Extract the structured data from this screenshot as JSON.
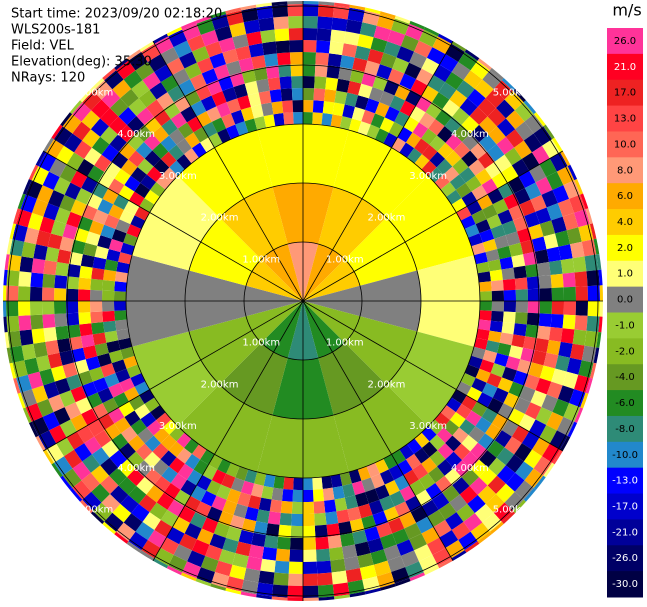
{
  "chart_data": {
    "type": "ppi",
    "header": [
      "Start time: 2023/09/20 02:18:20",
      "WLS200s-181",
      "Field: VEL",
      "Elevation(deg): 35.30",
      "NRays: 120"
    ],
    "colorbar_title": "m/s",
    "colorbar": [
      {
        "value": 26,
        "label": "26.0",
        "color": "#ff3399"
      },
      {
        "value": 21,
        "label": "21.0",
        "color": "#ff0022"
      },
      {
        "value": 17,
        "label": "17.0",
        "color": "#ee2222"
      },
      {
        "value": 13,
        "label": "13.0",
        "color": "#ff4444"
      },
      {
        "value": 10,
        "label": "10.0",
        "color": "#ff6655"
      },
      {
        "value": 8,
        "label": "8.0",
        "color": "#ff9977"
      },
      {
        "value": 6,
        "label": "6.0",
        "color": "#ffaa00"
      },
      {
        "value": 4,
        "label": "4.0",
        "color": "#ffcc00"
      },
      {
        "value": 2,
        "label": "2.0",
        "color": "#ffff00"
      },
      {
        "value": 1,
        "label": "1.0",
        "color": "#ffff77"
      },
      {
        "value": 0,
        "label": "0.0",
        "color": "#808080"
      },
      {
        "value": -1,
        "label": "-1.0",
        "color": "#99cc33"
      },
      {
        "value": -2,
        "label": "-2.0",
        "color": "#88bb22"
      },
      {
        "value": -4,
        "label": "-4.0",
        "color": "#669922"
      },
      {
        "value": -6,
        "label": "-6.0",
        "color": "#228b22"
      },
      {
        "value": -8,
        "label": "-8.0",
        "color": "#2e8b77"
      },
      {
        "value": -10,
        "label": "-10.0",
        "color": "#2288cc"
      },
      {
        "value": -13,
        "label": "-13.0",
        "color": "#0000ff"
      },
      {
        "value": -17,
        "label": "-17.0",
        "color": "#0000cc"
      },
      {
        "value": -21,
        "label": "-21.0",
        "color": "#000099"
      },
      {
        "value": -26,
        "label": "-26.0",
        "color": "#000066"
      },
      {
        "value": -30,
        "label": "-30.0",
        "color": "#000044"
      }
    ],
    "range_rings": [
      {
        "value": 1,
        "label": "1.00km"
      },
      {
        "value": 2,
        "label": "2.00km"
      },
      {
        "value": 3,
        "label": "3.00km"
      },
      {
        "value": 4,
        "label": "4.00km"
      },
      {
        "value": 5,
        "label": "5.00km"
      }
    ],
    "sector_azimuths": [
      0,
      30,
      60,
      90,
      120,
      150,
      180,
      210,
      240,
      270,
      300,
      330
    ],
    "gate_edges_km": [
      0,
      1,
      2,
      3
    ],
    "velocity": [
      [
        8,
        6,
        2
      ],
      [
        6,
        4,
        2
      ],
      [
        4,
        2,
        2
      ],
      [
        0,
        0,
        1
      ],
      [
        -2,
        -2,
        -1
      ],
      [
        -6,
        -4,
        -2
      ],
      [
        -8,
        -6,
        -2
      ],
      [
        -6,
        -4,
        -2
      ],
      [
        -2,
        -2,
        -1
      ],
      [
        0,
        0,
        0
      ],
      [
        4,
        2,
        1
      ],
      [
        6,
        4,
        2
      ]
    ]
  }
}
